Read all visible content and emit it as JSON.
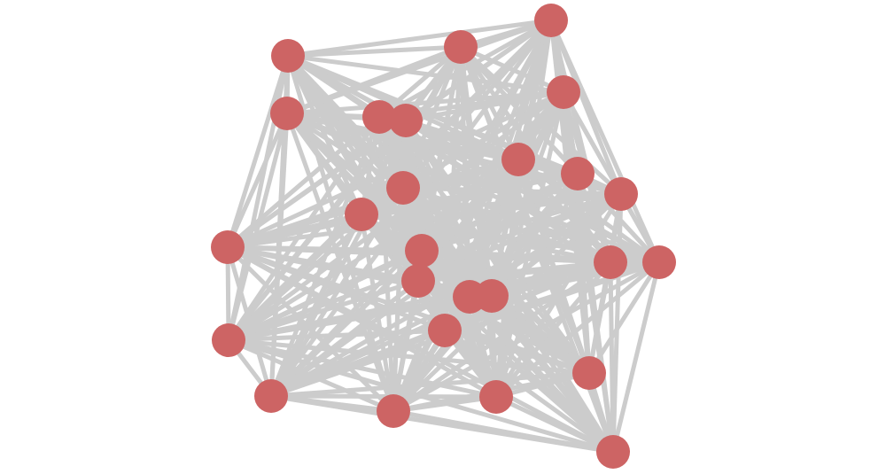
{
  "diagram": {
    "type": "network-graph",
    "graph": "complete",
    "node_count": 26,
    "nodes": [
      "n1",
      "n2",
      "n3",
      "n4",
      "n5",
      "n6",
      "n7",
      "n8",
      "n9",
      "n10",
      "n11",
      "n12",
      "n13",
      "n14",
      "n15",
      "n16",
      "n17",
      "n18",
      "n19",
      "n20",
      "n21",
      "n22",
      "n23",
      "n24",
      "n25",
      "n26"
    ],
    "labels_shown": false,
    "colors": {
      "node": "#cd6464",
      "edge": "#cccccc",
      "background": "#ffffff"
    }
  }
}
